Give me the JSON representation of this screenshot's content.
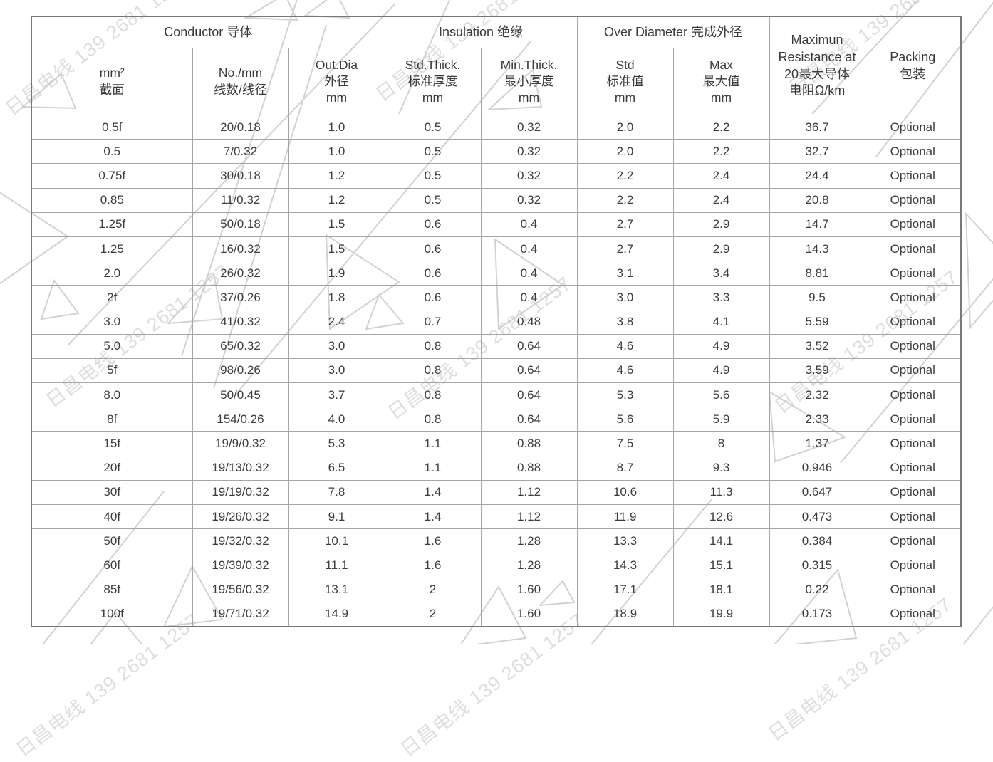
{
  "watermark": {
    "text": "日昌电线 139 2681 1257",
    "color": "#c4c4c4"
  },
  "table": {
    "groups": [
      {
        "label": "Conductor 导体",
        "span": 3
      },
      {
        "label": "Insulation 绝缘",
        "span": 2
      },
      {
        "label": "Over Diameter 完成外径",
        "span": 2
      }
    ],
    "columns": [
      "mm²\n截面",
      "No./mm\n线数/线径",
      "Out.Dia\n外径\nmm",
      "Std.Thick.\n标准厚度\nmm",
      "Min.Thick.\n最小厚度\nmm",
      "Std\n标准值\nmm",
      "Max\n最大值\nmm"
    ],
    "resistance_header": "Maximun\nResistance at\n20最大导体\n电阻Ω/km",
    "packing_header": "Packing\n包装",
    "rows": [
      [
        "0.5f",
        "20/0.18",
        "1.0",
        "0.5",
        "0.32",
        "2.0",
        "2.2",
        "36.7",
        "Optional"
      ],
      [
        "0.5",
        "7/0.32",
        "1.0",
        "0.5",
        "0.32",
        "2.0",
        "2.2",
        "32.7",
        "Optional"
      ],
      [
        "0.75f",
        "30/0.18",
        "1.2",
        "0.5",
        "0.32",
        "2.2",
        "2.4",
        "24.4",
        "Optional"
      ],
      [
        "0.85",
        "11/0.32",
        "1.2",
        "0.5",
        "0.32",
        "2.2",
        "2.4",
        "20.8",
        "Optional"
      ],
      [
        "1.25f",
        "50/0.18",
        "1.5",
        "0.6",
        "0.4",
        "2.7",
        "2.9",
        "14.7",
        "Optional"
      ],
      [
        "1.25",
        "16/0.32",
        "1.5",
        "0.6",
        "0.4",
        "2.7",
        "2.9",
        "14.3",
        "Optional"
      ],
      [
        "2.0",
        "26/0.32",
        "1.9",
        "0.6",
        "0.4",
        "3.1",
        "3.4",
        "8.81",
        "Optional"
      ],
      [
        "2f",
        "37/0.26",
        "1.8",
        "0.6",
        "0.4",
        "3.0",
        "3.3",
        "9.5",
        "Optional"
      ],
      [
        "3.0",
        "41/0.32",
        "2.4",
        "0.7",
        "0.48",
        "3.8",
        "4.1",
        "5.59",
        "Optional"
      ],
      [
        "5.0",
        "65/0.32",
        "3.0",
        "0.8",
        "0.64",
        "4.6",
        "4.9",
        "3.52",
        "Optional"
      ],
      [
        "5f",
        "98/0.26",
        "3.0",
        "0.8",
        "0.64",
        "4.6",
        "4.9",
        "3.59",
        "Optional"
      ],
      [
        "8.0",
        "50/0.45",
        "3.7",
        "0.8",
        "0.64",
        "5.3",
        "5.6",
        "2.32",
        "Optional"
      ],
      [
        "8f",
        "154/0.26",
        "4.0",
        "0.8",
        "0.64",
        "5.6",
        "5.9",
        "2.33",
        "Optional"
      ],
      [
        "15f",
        "19/9/0.32",
        "5.3",
        "1.1",
        "0.88",
        "7.5",
        "8",
        "1.37",
        "Optional"
      ],
      [
        "20f",
        "19/13/0.32",
        "6.5",
        "1.1",
        "0.88",
        "8.7",
        "9.3",
        "0.946",
        "Optional"
      ],
      [
        "30f",
        "19/19/0.32",
        "7.8",
        "1.4",
        "1.12",
        "10.6",
        "11.3",
        "0.647",
        "Optional"
      ],
      [
        "40f",
        "19/26/0.32",
        "9.1",
        "1.4",
        "1.12",
        "11.9",
        "12.6",
        "0.473",
        "Optional"
      ],
      [
        "50f",
        "19/32/0.32",
        "10.1",
        "1.6",
        "1.28",
        "13.3",
        "14.1",
        "0.384",
        "Optional"
      ],
      [
        "60f",
        "19/39/0.32",
        "11.1",
        "1.6",
        "1.28",
        "14.3",
        "15.1",
        "0.315",
        "Optional"
      ],
      [
        "85f",
        "19/56/0.32",
        "13.1",
        "2",
        "1.60",
        "17.1",
        "18.1",
        "0.22",
        "Optional"
      ],
      [
        "100f",
        "19/71/0.32",
        "14.9",
        "2",
        "1.60",
        "18.9",
        "19.9",
        "0.173",
        "Optional"
      ]
    ]
  }
}
